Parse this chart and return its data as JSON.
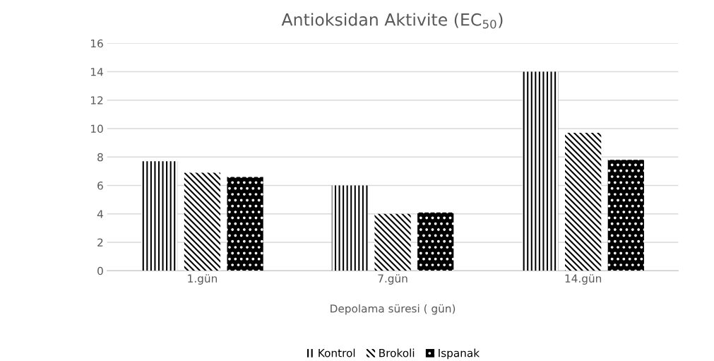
{
  "chart_data": {
    "type": "bar",
    "title": "Antioksidan Aktivite (EC$_{50}$)",
    "xlabel": "Depolama süresi ( gün)",
    "categories": [
      "1.gün",
      "7.gün",
      "14.gün"
    ],
    "series": [
      {
        "name": "Kontrol",
        "color": "#000000",
        "values": [
          7.7,
          6.0,
          14.0
        ]
      },
      {
        "name": "Brokoli",
        "color": "#000000",
        "values": [
          6.9,
          4.0,
          9.7
        ]
      },
      {
        "name": "Ispanak",
        "color": "#000000",
        "values": [
          6.6,
          4.1,
          7.8
        ]
      }
    ],
    "ylim": [
      0,
      16
    ],
    "yticks": [
      0,
      2,
      4,
      6,
      8,
      10,
      12,
      14,
      16
    ],
    "grid": "y",
    "legend": "bottom"
  }
}
